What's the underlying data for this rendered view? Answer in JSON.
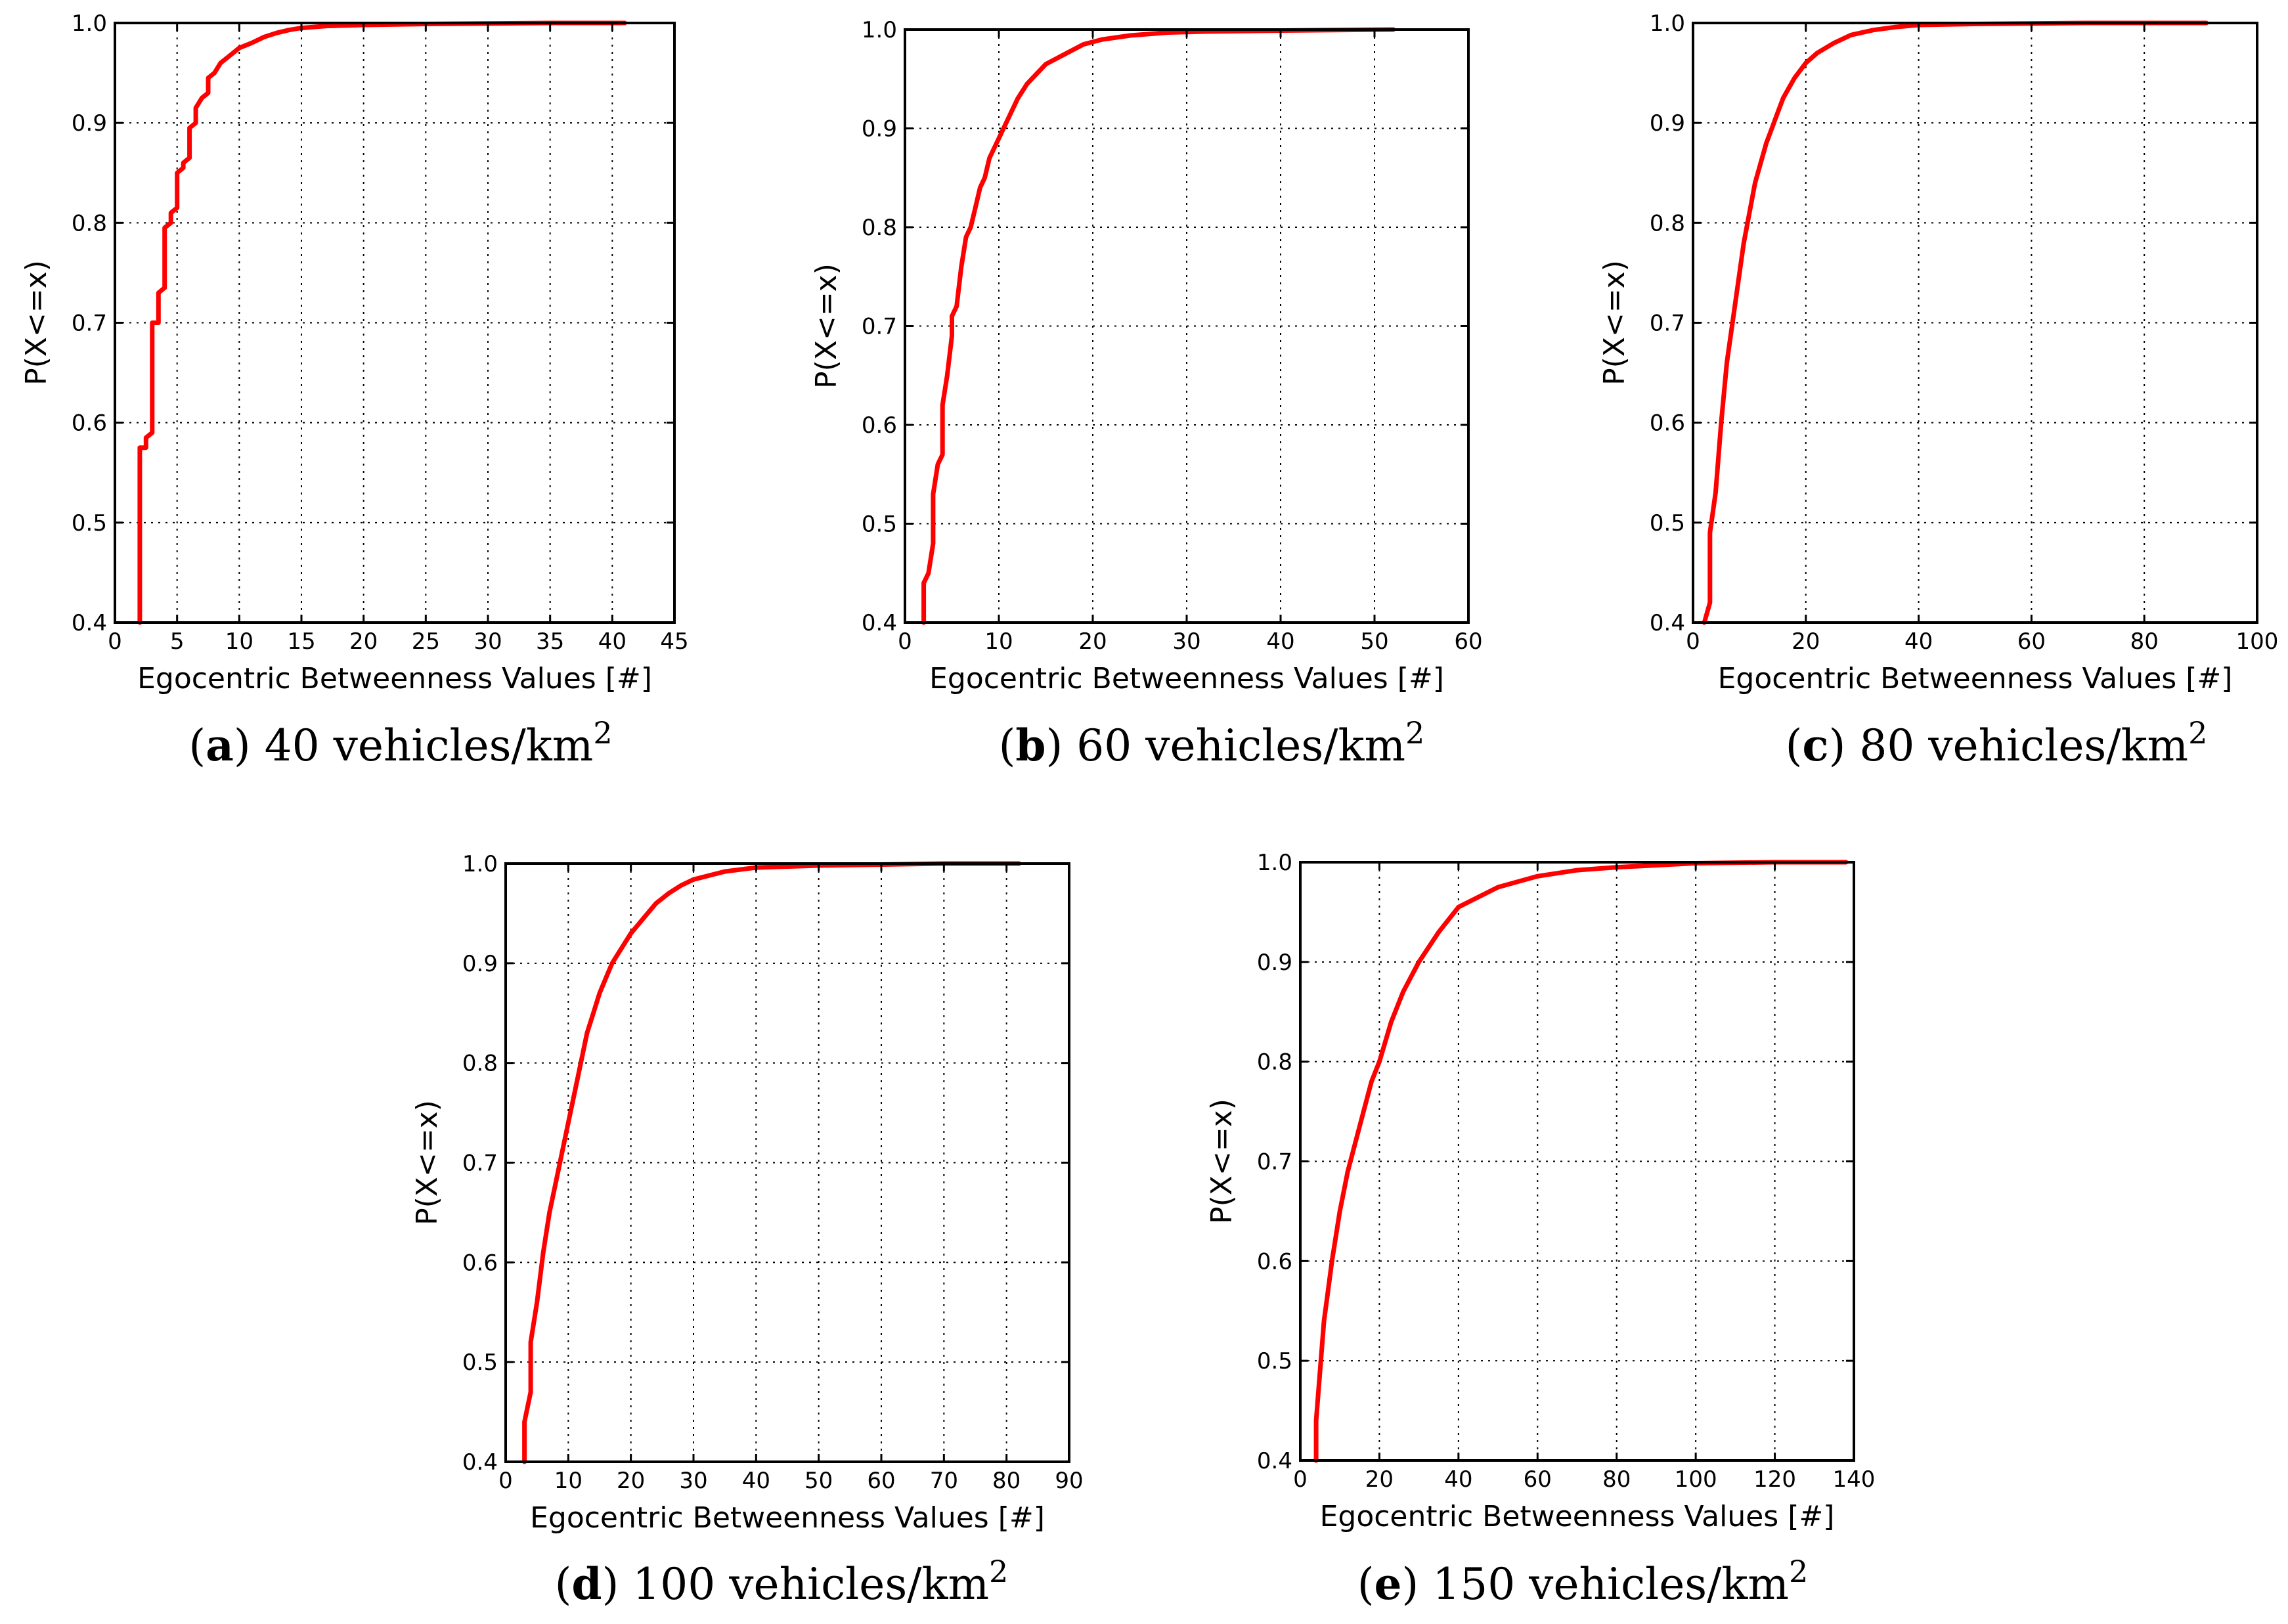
{
  "figure": {
    "charts_note": "five CDF panels of egocentric betweenness"
  },
  "chart_data": [
    {
      "type": "line",
      "panel": "a",
      "caption_letter": "a",
      "caption_text": "40 vehicles/km",
      "caption_sup": "2",
      "xlabel": "Egocentric Betweenness Values [#]",
      "ylabel": "P(X<=x)",
      "xlim": [
        0,
        45
      ],
      "ylim": [
        0.4,
        1.0
      ],
      "xticks": [
        0,
        5,
        10,
        15,
        20,
        25,
        30,
        35,
        40,
        45
      ],
      "yticks": [
        0.4,
        0.5,
        0.6,
        0.7,
        0.8,
        0.9,
        1.0
      ],
      "ytick_labels": [
        "0.4",
        "0.5",
        "0.6",
        "0.7",
        "0.8",
        "0.9",
        "1.0"
      ],
      "grid": true,
      "series": [
        {
          "name": "CDF",
          "color": "#ff0000",
          "x": [
            2,
            2,
            2.5,
            2.5,
            3,
            3,
            3.5,
            3.5,
            4,
            4,
            4.5,
            4.5,
            5,
            5,
            5.5,
            5.5,
            6,
            6,
            6.5,
            6.5,
            7,
            7.5,
            7.5,
            8,
            8.5,
            9,
            9.5,
            10,
            11,
            12,
            13,
            14,
            15,
            17,
            20,
            25,
            30,
            35,
            41
          ],
          "y": [
            0.4,
            0.575,
            0.575,
            0.585,
            0.59,
            0.7,
            0.7,
            0.73,
            0.735,
            0.795,
            0.8,
            0.81,
            0.815,
            0.85,
            0.855,
            0.86,
            0.865,
            0.895,
            0.9,
            0.915,
            0.925,
            0.93,
            0.945,
            0.95,
            0.96,
            0.965,
            0.97,
            0.975,
            0.98,
            0.986,
            0.99,
            0.993,
            0.995,
            0.997,
            0.998,
            0.999,
            0.9995,
            1.0,
            1.0
          ]
        }
      ]
    },
    {
      "type": "line",
      "panel": "b",
      "caption_letter": "b",
      "caption_text": "60 vehicles/km",
      "caption_sup": "2",
      "xlabel": "Egocentric Betweenness Values [#]",
      "ylabel": "P(X<=x)",
      "xlim": [
        0,
        60
      ],
      "ylim": [
        0.4,
        1.0
      ],
      "xticks": [
        0,
        10,
        20,
        30,
        40,
        50,
        60
      ],
      "yticks": [
        0.4,
        0.5,
        0.6,
        0.7,
        0.8,
        0.9,
        1.0
      ],
      "ytick_labels": [
        "0.4",
        "0.5",
        "0.6",
        "0.7",
        "0.8",
        "0.9",
        "1.0"
      ],
      "grid": true,
      "series": [
        {
          "name": "CDF",
          "color": "#ff0000",
          "x": [
            2,
            2,
            2.5,
            3,
            3,
            3.5,
            4,
            4,
            4.5,
            5,
            5,
            5.5,
            6,
            6.5,
            7,
            7.5,
            8,
            8.5,
            9,
            10,
            11,
            12,
            13,
            14,
            15,
            17,
            19,
            21,
            24,
            28,
            32,
            40,
            52
          ],
          "y": [
            0.4,
            0.44,
            0.45,
            0.48,
            0.53,
            0.56,
            0.57,
            0.62,
            0.65,
            0.69,
            0.71,
            0.72,
            0.76,
            0.79,
            0.8,
            0.82,
            0.84,
            0.85,
            0.87,
            0.89,
            0.91,
            0.93,
            0.945,
            0.955,
            0.965,
            0.975,
            0.985,
            0.99,
            0.994,
            0.997,
            0.998,
            0.999,
            1.0
          ]
        }
      ]
    },
    {
      "type": "line",
      "panel": "c",
      "caption_letter": "c",
      "caption_text": "80 vehicles/km",
      "caption_sup": "2",
      "xlabel": "Egocentric Betweenness Values [#]",
      "ylabel": "P(X<=x)",
      "xlim": [
        0,
        100
      ],
      "ylim": [
        0.4,
        1.0
      ],
      "xticks": [
        0,
        20,
        40,
        60,
        80,
        100
      ],
      "yticks": [
        0.4,
        0.5,
        0.6,
        0.7,
        0.8,
        0.9,
        1.0
      ],
      "ytick_labels": [
        "0.4",
        "0.5",
        "0.6",
        "0.7",
        "0.8",
        "0.9",
        "1.0"
      ],
      "grid": true,
      "series": [
        {
          "name": "CDF",
          "color": "#ff0000",
          "x": [
            2,
            3,
            3,
            4,
            5,
            6,
            7,
            8,
            9,
            10,
            11,
            12,
            13,
            14,
            15,
            16,
            18,
            20,
            22,
            25,
            28,
            32,
            36,
            40,
            50,
            60,
            70,
            80,
            91
          ],
          "y": [
            0.4,
            0.42,
            0.49,
            0.53,
            0.6,
            0.66,
            0.7,
            0.74,
            0.78,
            0.81,
            0.84,
            0.86,
            0.88,
            0.895,
            0.91,
            0.925,
            0.945,
            0.96,
            0.97,
            0.98,
            0.988,
            0.993,
            0.996,
            0.998,
            0.999,
            0.9995,
            1.0,
            1.0,
            1.0
          ]
        }
      ]
    },
    {
      "type": "line",
      "panel": "d",
      "caption_letter": "d",
      "caption_text": "100 vehicles/km",
      "caption_sup": "2",
      "xlabel": "Egocentric Betweenness Values [#]",
      "ylabel": "P(X<=x)",
      "xlim": [
        0,
        90
      ],
      "ylim": [
        0.4,
        1.0
      ],
      "xticks": [
        0,
        10,
        20,
        30,
        40,
        50,
        60,
        70,
        80,
        90
      ],
      "yticks": [
        0.4,
        0.5,
        0.6,
        0.7,
        0.8,
        0.9,
        1.0
      ],
      "ytick_labels": [
        "0.4",
        "0.5",
        "0.6",
        "0.7",
        "0.8",
        "0.9",
        "1.0"
      ],
      "grid": true,
      "series": [
        {
          "name": "CDF",
          "color": "#ff0000",
          "x": [
            3,
            3,
            4,
            4,
            5,
            6,
            7,
            8,
            9,
            10,
            11,
            12,
            13,
            14,
            15,
            16,
            17,
            18,
            20,
            22,
            24,
            26,
            28,
            30,
            35,
            40,
            50,
            60,
            70,
            82
          ],
          "y": [
            0.4,
            0.44,
            0.47,
            0.52,
            0.56,
            0.61,
            0.65,
            0.68,
            0.71,
            0.74,
            0.77,
            0.8,
            0.83,
            0.85,
            0.87,
            0.885,
            0.9,
            0.91,
            0.93,
            0.945,
            0.96,
            0.97,
            0.978,
            0.984,
            0.992,
            0.996,
            0.998,
            0.999,
            1.0,
            1.0
          ]
        }
      ]
    },
    {
      "type": "line",
      "panel": "e",
      "caption_letter": "e",
      "caption_text": "150 vehicles/km",
      "caption_sup": "2",
      "xlabel": "Egocentric Betweenness Values [#]",
      "ylabel": "P(X<=x)",
      "xlim": [
        0,
        140
      ],
      "ylim": [
        0.4,
        1.0
      ],
      "xticks": [
        0,
        20,
        40,
        60,
        80,
        100,
        120,
        140
      ],
      "yticks": [
        0.4,
        0.5,
        0.6,
        0.7,
        0.8,
        0.9,
        1.0
      ],
      "ytick_labels": [
        "0.4",
        "0.5",
        "0.6",
        "0.7",
        "0.8",
        "0.9",
        "1.0"
      ],
      "grid": true,
      "series": [
        {
          "name": "CDF",
          "color": "#ff0000",
          "x": [
            4,
            4,
            5,
            6,
            7,
            8,
            10,
            12,
            14,
            16,
            18,
            20,
            23,
            26,
            30,
            35,
            40,
            45,
            50,
            60,
            70,
            80,
            90,
            100,
            120,
            138
          ],
          "y": [
            0.4,
            0.44,
            0.49,
            0.54,
            0.57,
            0.6,
            0.65,
            0.69,
            0.72,
            0.75,
            0.78,
            0.8,
            0.84,
            0.87,
            0.9,
            0.93,
            0.955,
            0.965,
            0.975,
            0.986,
            0.992,
            0.995,
            0.997,
            0.999,
            1.0,
            1.0
          ]
        }
      ]
    }
  ]
}
